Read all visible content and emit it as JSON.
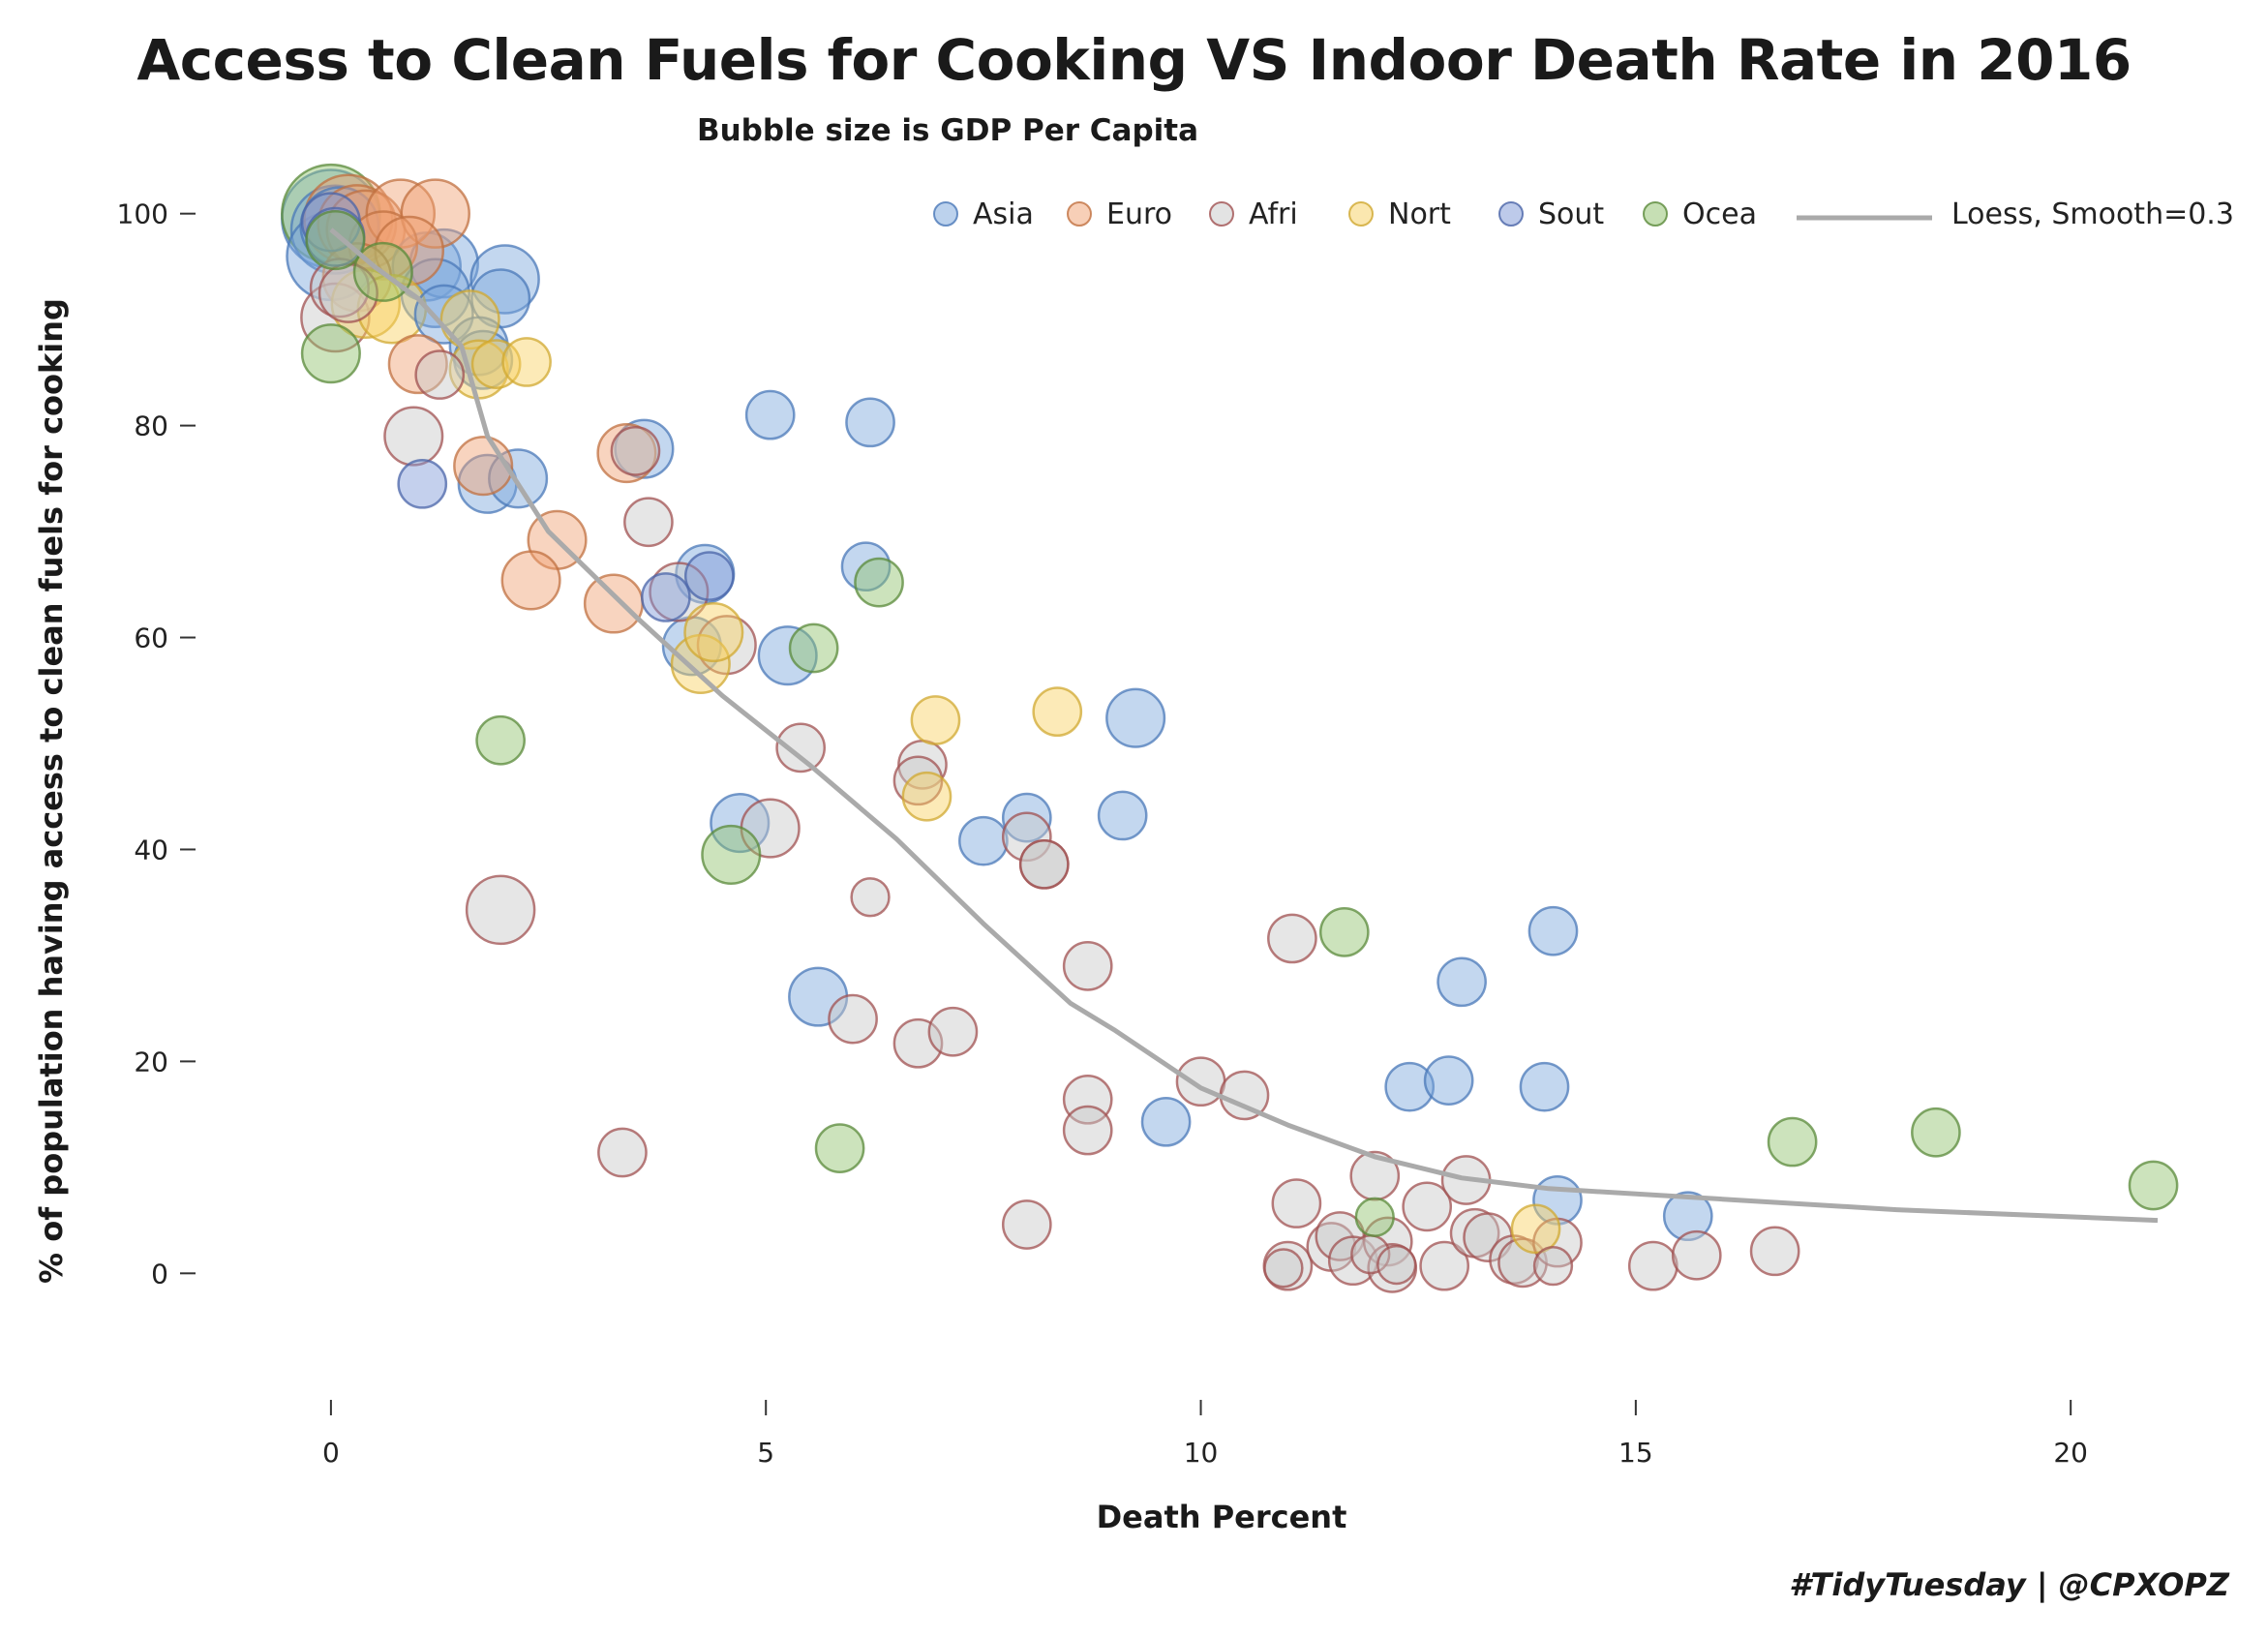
{
  "chart_data": {
    "type": "scatter",
    "title": "Access to Clean Fuels for Cooking VS Indoor Death Rate in 2016",
    "subtitle": "Bubble size is GDP Per Capita",
    "xlabel": "Death Percent",
    "ylabel": "% of population having access to clean fuels for cooking",
    "caption": "#TidyTuesday | @CPXOPZ",
    "xlim": [
      -0.8,
      21.3
    ],
    "ylim": [
      -6,
      106
    ],
    "xticks": [
      0,
      5,
      10,
      15,
      20
    ],
    "yticks": [
      0,
      20,
      40,
      60,
      80,
      100
    ],
    "grid": false,
    "legend_position": "top-right",
    "series": [
      {
        "name": "Asia",
        "color": "#7aa6dc",
        "stroke": "#4a78b8",
        "points": [
          {
            "x": 0.0,
            "y": 99.5,
            "s": 8
          },
          {
            "x": 0.05,
            "y": 98.5,
            "s": 7
          },
          {
            "x": 0.1,
            "y": 98.8,
            "s": 6
          },
          {
            "x": 0.0,
            "y": 96.0,
            "s": 7
          },
          {
            "x": 1.1,
            "y": 95.0,
            "s": 5
          },
          {
            "x": 1.3,
            "y": 95.3,
            "s": 5
          },
          {
            "x": 1.2,
            "y": 92.5,
            "s": 5
          },
          {
            "x": 1.3,
            "y": 90.5,
            "s": 4
          },
          {
            "x": 2.0,
            "y": 93.8,
            "s": 5
          },
          {
            "x": 1.95,
            "y": 92.0,
            "s": 4
          },
          {
            "x": 1.7,
            "y": 87.5,
            "s": 4
          },
          {
            "x": 1.75,
            "y": 86.2,
            "s": 4
          },
          {
            "x": 1.8,
            "y": 74.5,
            "s": 4
          },
          {
            "x": 2.15,
            "y": 75.0,
            "s": 4
          },
          {
            "x": 3.6,
            "y": 77.8,
            "s": 4
          },
          {
            "x": 5.05,
            "y": 81.0,
            "s": 3
          },
          {
            "x": 6.2,
            "y": 80.3,
            "s": 3
          },
          {
            "x": 6.15,
            "y": 66.7,
            "s": 3
          },
          {
            "x": 4.3,
            "y": 66.0,
            "s": 4
          },
          {
            "x": 4.15,
            "y": 59.2,
            "s": 4
          },
          {
            "x": 5.25,
            "y": 58.3,
            "s": 4
          },
          {
            "x": 4.7,
            "y": 42.5,
            "s": 4
          },
          {
            "x": 5.6,
            "y": 26.1,
            "s": 4
          },
          {
            "x": 7.5,
            "y": 40.8,
            "s": 3
          },
          {
            "x": 8.0,
            "y": 43.0,
            "s": 3
          },
          {
            "x": 9.1,
            "y": 43.2,
            "s": 3
          },
          {
            "x": 9.25,
            "y": 52.4,
            "s": 4
          },
          {
            "x": 9.6,
            "y": 14.3,
            "s": 3
          },
          {
            "x": 12.4,
            "y": 17.6,
            "s": 3
          },
          {
            "x": 12.85,
            "y": 18.2,
            "s": 3
          },
          {
            "x": 13.0,
            "y": 27.5,
            "s": 3
          },
          {
            "x": 14.05,
            "y": 32.3,
            "s": 3
          },
          {
            "x": 13.95,
            "y": 17.6,
            "s": 3
          },
          {
            "x": 14.1,
            "y": 6.9,
            "s": 3
          },
          {
            "x": 15.6,
            "y": 5.4,
            "s": 3
          }
        ]
      },
      {
        "name": "Euro",
        "color": "#f0a070",
        "stroke": "#c07040",
        "points": [
          {
            "x": 0.2,
            "y": 99.5,
            "s": 7
          },
          {
            "x": 0.3,
            "y": 99.0,
            "s": 6
          },
          {
            "x": 0.4,
            "y": 98.5,
            "s": 6
          },
          {
            "x": 0.8,
            "y": 100.0,
            "s": 5
          },
          {
            "x": 1.2,
            "y": 100.0,
            "s": 5
          },
          {
            "x": 0.6,
            "y": 97.0,
            "s": 5
          },
          {
            "x": 0.9,
            "y": 96.5,
            "s": 5
          },
          {
            "x": 1.0,
            "y": 85.8,
            "s": 4
          },
          {
            "x": 1.75,
            "y": 76.2,
            "s": 4
          },
          {
            "x": 2.6,
            "y": 69.2,
            "s": 4
          },
          {
            "x": 2.3,
            "y": 65.4,
            "s": 4
          },
          {
            "x": 3.4,
            "y": 77.4,
            "s": 4
          },
          {
            "x": 3.25,
            "y": 63.2,
            "s": 4
          },
          {
            "x": 0.3,
            "y": 94.0,
            "s": 5
          }
        ]
      },
      {
        "name": "Afri",
        "color": "#c8c8c8",
        "stroke": "#a05050",
        "points": [
          {
            "x": 0.1,
            "y": 93.0,
            "s": 4
          },
          {
            "x": 0.05,
            "y": 90.2,
            "s": 5
          },
          {
            "x": 0.2,
            "y": 92.5,
            "s": 4
          },
          {
            "x": 1.25,
            "y": 84.8,
            "s": 3
          },
          {
            "x": 0.95,
            "y": 79.0,
            "s": 4
          },
          {
            "x": 3.5,
            "y": 77.6,
            "s": 3
          },
          {
            "x": 3.65,
            "y": 70.9,
            "s": 3
          },
          {
            "x": 4.0,
            "y": 64.3,
            "s": 4
          },
          {
            "x": 4.55,
            "y": 59.3,
            "s": 4
          },
          {
            "x": 5.4,
            "y": 49.6,
            "s": 3
          },
          {
            "x": 5.05,
            "y": 42.0,
            "s": 4
          },
          {
            "x": 1.95,
            "y": 34.3,
            "s": 5
          },
          {
            "x": 6.8,
            "y": 48.0,
            "s": 3
          },
          {
            "x": 6.75,
            "y": 46.5,
            "s": 3
          },
          {
            "x": 8.0,
            "y": 41.2,
            "s": 3
          },
          {
            "x": 8.2,
            "y": 38.6,
            "s": 3
          },
          {
            "x": 8.2,
            "y": 38.6,
            "s": 3
          },
          {
            "x": 6.2,
            "y": 35.5,
            "s": 2
          },
          {
            "x": 6.0,
            "y": 24.0,
            "s": 3
          },
          {
            "x": 6.75,
            "y": 21.7,
            "s": 3
          },
          {
            "x": 7.15,
            "y": 22.8,
            "s": 3
          },
          {
            "x": 8.7,
            "y": 29.0,
            "s": 3
          },
          {
            "x": 8.7,
            "y": 16.4,
            "s": 3
          },
          {
            "x": 8.7,
            "y": 13.5,
            "s": 3
          },
          {
            "x": 10.0,
            "y": 18.1,
            "s": 3
          },
          {
            "x": 10.5,
            "y": 16.8,
            "s": 3
          },
          {
            "x": 3.35,
            "y": 11.4,
            "s": 3
          },
          {
            "x": 8.0,
            "y": 4.6,
            "s": 3
          },
          {
            "x": 11.05,
            "y": 31.6,
            "s": 3
          },
          {
            "x": 11.1,
            "y": 6.6,
            "s": 3
          },
          {
            "x": 11.0,
            "y": 0.7,
            "s": 3
          },
          {
            "x": 10.95,
            "y": 0.5,
            "s": 2
          },
          {
            "x": 11.5,
            "y": 2.5,
            "s": 3
          },
          {
            "x": 11.6,
            "y": 3.5,
            "s": 3
          },
          {
            "x": 11.75,
            "y": 1.2,
            "s": 3
          },
          {
            "x": 11.95,
            "y": 1.8,
            "s": 2
          },
          {
            "x": 12.0,
            "y": 9.2,
            "s": 3
          },
          {
            "x": 12.15,
            "y": 3.0,
            "s": 3
          },
          {
            "x": 12.2,
            "y": 0.5,
            "s": 3
          },
          {
            "x": 12.25,
            "y": 0.8,
            "s": 2
          },
          {
            "x": 12.6,
            "y": 6.3,
            "s": 3
          },
          {
            "x": 12.8,
            "y": 0.7,
            "s": 3
          },
          {
            "x": 13.05,
            "y": 8.8,
            "s": 3
          },
          {
            "x": 13.15,
            "y": 3.8,
            "s": 3
          },
          {
            "x": 13.3,
            "y": 3.4,
            "s": 3
          },
          {
            "x": 13.6,
            "y": 1.3,
            "s": 3
          },
          {
            "x": 13.7,
            "y": 1.0,
            "s": 3
          },
          {
            "x": 14.05,
            "y": 0.7,
            "s": 2
          },
          {
            "x": 14.1,
            "y": 2.9,
            "s": 3
          },
          {
            "x": 15.2,
            "y": 0.7,
            "s": 3
          },
          {
            "x": 15.7,
            "y": 1.7,
            "s": 3
          },
          {
            "x": 16.6,
            "y": 2.1,
            "s": 3
          }
        ]
      },
      {
        "name": "Nort",
        "color": "#f8d060",
        "stroke": "#d0a830",
        "points": [
          {
            "x": 0.4,
            "y": 91.5,
            "s": 5
          },
          {
            "x": 0.7,
            "y": 91.0,
            "s": 5
          },
          {
            "x": 1.6,
            "y": 90.0,
            "s": 4
          },
          {
            "x": 1.7,
            "y": 85.3,
            "s": 4
          },
          {
            "x": 1.9,
            "y": 85.8,
            "s": 3
          },
          {
            "x": 2.25,
            "y": 86.0,
            "s": 3
          },
          {
            "x": 4.25,
            "y": 57.5,
            "s": 4
          },
          {
            "x": 4.4,
            "y": 60.5,
            "s": 4
          },
          {
            "x": 6.85,
            "y": 45.0,
            "s": 3
          },
          {
            "x": 6.95,
            "y": 52.2,
            "s": 3
          },
          {
            "x": 8.35,
            "y": 53.0,
            "s": 3
          },
          {
            "x": 13.85,
            "y": 4.2,
            "s": 3
          }
        ]
      },
      {
        "name": "Sout",
        "color": "#7c96d6",
        "stroke": "#4a64a8",
        "points": [
          {
            "x": 0.0,
            "y": 99.2,
            "s": 4
          },
          {
            "x": 0.05,
            "y": 97.8,
            "s": 4
          },
          {
            "x": 1.05,
            "y": 74.5,
            "s": 3
          },
          {
            "x": 3.85,
            "y": 63.8,
            "s": 3
          },
          {
            "x": 4.35,
            "y": 65.8,
            "s": 3
          }
        ]
      },
      {
        "name": "Ocea",
        "color": "#8ec06a",
        "stroke": "#5a8a3a",
        "points": [
          {
            "x": 0.0,
            "y": 100.0,
            "s": 8
          },
          {
            "x": 0.05,
            "y": 97.5,
            "s": 4
          },
          {
            "x": 0.6,
            "y": 94.5,
            "s": 4
          },
          {
            "x": 0.0,
            "y": 86.8,
            "s": 4
          },
          {
            "x": 1.95,
            "y": 50.3,
            "s": 3
          },
          {
            "x": 4.6,
            "y": 39.5,
            "s": 4
          },
          {
            "x": 5.55,
            "y": 59.0,
            "s": 3
          },
          {
            "x": 6.3,
            "y": 65.2,
            "s": 3
          },
          {
            "x": 5.85,
            "y": 11.8,
            "s": 3
          },
          {
            "x": 11.65,
            "y": 32.2,
            "s": 3
          },
          {
            "x": 12.0,
            "y": 5.3,
            "s": 2
          },
          {
            "x": 16.8,
            "y": 12.4,
            "s": 3
          },
          {
            "x": 18.45,
            "y": 13.3,
            "s": 3
          },
          {
            "x": 20.95,
            "y": 8.3,
            "s": 3
          }
        ]
      }
    ],
    "smooth_line": {
      "name": "Loess, Smooth=0.3",
      "color": "#aaaaaa",
      "x": [
        0,
        0.5,
        1.0,
        1.5,
        1.8,
        2.5,
        3.5,
        4.5,
        5.5,
        6.5,
        7.5,
        8.5,
        9.0,
        10.0,
        11.0,
        12.0,
        13.0,
        14.0,
        16.0,
        18.0,
        21.0
      ],
      "y": [
        98.5,
        95.0,
        92.0,
        87.5,
        79.0,
        70.0,
        62.0,
        54.5,
        48.0,
        41.0,
        33.0,
        25.5,
        23.0,
        17.5,
        14.0,
        11.0,
        9.0,
        8.0,
        7.0,
        6.0,
        5.0
      ]
    }
  }
}
